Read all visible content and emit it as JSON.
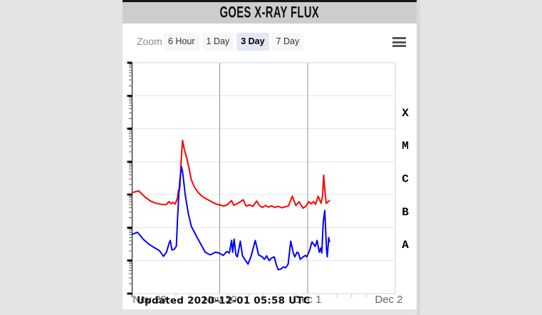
{
  "header": {
    "title": "GOES X-RAY FLUX"
  },
  "toolbar": {
    "zoom_label": "Zoom",
    "buttons": [
      {
        "label": "6 Hour",
        "selected": false
      },
      {
        "label": "1 Day",
        "selected": false
      },
      {
        "label": "3 Day",
        "selected": true
      },
      {
        "label": "7 Day",
        "selected": false
      }
    ]
  },
  "footer": {
    "updated": "Updated 2020-12-01 05:58 UTC"
  },
  "colors": {
    "page-bg": "#e4e4e4",
    "header-bg": "#cdcdcd",
    "button-bg": "#f7f7f7",
    "selected-button-bg": "#e2e9f5",
    "red-series": "#fe0000",
    "blue-series": "#0000fe",
    "day-gridline": "#919191",
    "decade-gridline": "#e6e6e6",
    "plot-border": "#ccd6eb",
    "axis-label": "#666666",
    "x-tick": "#c2cad8"
  },
  "chart_data": {
    "type": "line",
    "title": "GOES X-RAY FLUX",
    "x_axis": {
      "tick_labels": [
        "Nov 29",
        "Nov 30",
        "Dec 1",
        "Dec 2"
      ],
      "tick_hours": [
        0,
        24,
        48,
        72
      ],
      "day_gridline_hours": [
        24,
        48
      ],
      "minor_tick_interval_hours": 4,
      "range_hours": [
        0,
        72
      ],
      "grid": true
    },
    "y_axis": {
      "scale": "log",
      "min": 1e-09,
      "max": 0.01,
      "class_labels": [
        "X",
        "M",
        "C",
        "B",
        "A"
      ],
      "class_label_flux_centers": [
        0.000316,
        3.16e-05,
        3.16e-06,
        3.16e-07,
        3.16e-08
      ],
      "labels_position": "right",
      "grid": true
    },
    "legend": "none",
    "series": [
      {
        "name": "red",
        "color": "#fe0000",
        "points": [
          [
            0,
            1.15e-06
          ],
          [
            1.8,
            1.3e-06
          ],
          [
            3.5,
            8.5e-07
          ],
          [
            5,
            6.4e-07
          ],
          [
            6.5,
            5.5e-07
          ],
          [
            8,
            5.1e-07
          ],
          [
            9.3,
            5e-07
          ],
          [
            10.1,
            6.2e-07
          ],
          [
            10.6,
            5.3e-07
          ],
          [
            11.2,
            5.8e-07
          ],
          [
            11.8,
            5.2e-07
          ],
          [
            12.4,
            7.8e-07
          ],
          [
            12.7,
            1.4e-06
          ],
          [
            12.9,
            1.3e-06
          ],
          [
            13.1,
            1.9e-06
          ],
          [
            13.35,
            8e-06
          ],
          [
            13.8,
            4.4e-05
          ],
          [
            14.3,
            2.3e-05
          ],
          [
            14.9,
            1.35e-05
          ],
          [
            15.6,
            6.1e-06
          ],
          [
            16.2,
            2.8e-06
          ],
          [
            17.1,
            1.65e-06
          ],
          [
            18.1,
            1.16e-06
          ],
          [
            19.1,
            9e-07
          ],
          [
            20,
            7.8e-07
          ],
          [
            21.4,
            6.4e-07
          ],
          [
            23,
            5.2e-07
          ],
          [
            24,
            4.9e-07
          ],
          [
            25,
            4.5e-07
          ],
          [
            26,
            4.9e-07
          ],
          [
            27.2,
            6.6e-07
          ],
          [
            27.8,
            4.8e-07
          ],
          [
            28.6,
            5.2e-07
          ],
          [
            29.6,
            6.1e-07
          ],
          [
            30.4,
            7e-07
          ],
          [
            31.2,
            4.5e-07
          ],
          [
            32.2,
            4.9e-07
          ],
          [
            33,
            4.4e-07
          ],
          [
            34.1,
            6.4e-07
          ],
          [
            34.8,
            4.7e-07
          ],
          [
            35.6,
            4.1e-07
          ],
          [
            36.5,
            4.7e-07
          ],
          [
            37.3,
            4.2e-07
          ],
          [
            38.2,
            4.6e-07
          ],
          [
            39,
            4.1e-07
          ],
          [
            40,
            4.4e-07
          ],
          [
            41,
            4e-07
          ],
          [
            42,
            4.3e-07
          ],
          [
            42.8,
            4.6e-07
          ],
          [
            43.8,
            9e-07
          ],
          [
            44.8,
            4.7e-07
          ],
          [
            45.7,
            6.1e-07
          ],
          [
            46.7,
            3.9e-07
          ],
          [
            47.5,
            4.4e-07
          ],
          [
            48.3,
            6.1e-07
          ],
          [
            49,
            5.3e-07
          ],
          [
            49.6,
            6.2e-07
          ],
          [
            50.2,
            5.1e-07
          ],
          [
            50.9,
            9e-07
          ],
          [
            51.7,
            5.5e-07
          ],
          [
            52.1,
            9e-07
          ],
          [
            52.4,
            3.9e-06
          ],
          [
            52.75,
            1.3e-06
          ],
          [
            53.1,
            5.4e-07
          ],
          [
            53.5,
            6e-07
          ],
          [
            54,
            6.6e-07
          ]
        ]
      },
      {
        "name": "blue",
        "color": "#0000fe",
        "points": [
          [
            0,
            6.3e-08
          ],
          [
            1.5,
            7.2e-08
          ],
          [
            3,
            4.5e-08
          ],
          [
            4.5,
            3.2e-08
          ],
          [
            6,
            2.5e-08
          ],
          [
            7.5,
            2e-08
          ],
          [
            8.6,
            1.35e-08
          ],
          [
            9.4,
            1.8e-08
          ],
          [
            10.1,
            3.3e-08
          ],
          [
            10.45,
            4.1e-08
          ],
          [
            10.9,
            2.1e-08
          ],
          [
            11.5,
            2.2e-08
          ],
          [
            12.1,
            2.7e-08
          ],
          [
            12.4,
            1.56e-07
          ],
          [
            12.8,
            1.16e-06
          ],
          [
            13.1,
            3e-06
          ],
          [
            13.5,
            7e-06
          ],
          [
            13.8,
            5e-06
          ],
          [
            14.2,
            2.1e-06
          ],
          [
            14.5,
            1.05e-06
          ],
          [
            14.9,
            5.4e-07
          ],
          [
            15.4,
            2.6e-07
          ],
          [
            16.2,
            1.1e-07
          ],
          [
            17.5,
            5.8e-08
          ],
          [
            18.9,
            3e-08
          ],
          [
            20,
            1.8e-08
          ],
          [
            21.4,
            1.5e-08
          ],
          [
            22.8,
            1.8e-08
          ],
          [
            23.8,
            1.7e-08
          ],
          [
            24.9,
            1.44e-08
          ],
          [
            25.9,
            1.9e-08
          ],
          [
            26.6,
            1.7e-08
          ],
          [
            27.2,
            4.1e-08
          ],
          [
            27.5,
            1.8e-08
          ],
          [
            27.9,
            4.5e-08
          ],
          [
            28.4,
            1.5e-08
          ],
          [
            28.8,
            1.3e-08
          ],
          [
            29.6,
            3.9e-08
          ],
          [
            30.2,
            1.4e-08
          ],
          [
            30.8,
            1.1e-08
          ],
          [
            31.7,
            7.9e-09
          ],
          [
            32.5,
            1.3e-08
          ],
          [
            33.7,
            4.1e-08
          ],
          [
            34.6,
            1.5e-08
          ],
          [
            35.6,
            1.3e-08
          ],
          [
            36.2,
            1.1e-08
          ],
          [
            36.8,
            1.4e-08
          ],
          [
            37.5,
            1e-08
          ],
          [
            38.2,
            1.2e-08
          ],
          [
            38.9,
            1.3e-08
          ],
          [
            39.5,
            7.2e-09
          ],
          [
            40,
            5.3e-09
          ],
          [
            40.6,
            5.5e-09
          ],
          [
            41.4,
            6.4e-09
          ],
          [
            42,
            6.1e-09
          ],
          [
            42.7,
            7.9e-09
          ],
          [
            43.4,
            3.9e-08
          ],
          [
            44.1,
            1.7e-08
          ],
          [
            44.5,
            1.3e-08
          ],
          [
            45.1,
            1.8e-08
          ],
          [
            45.5,
            1.7e-08
          ],
          [
            46,
            1.1e-08
          ],
          [
            46.8,
            1.3e-08
          ],
          [
            47.4,
            1.44e-08
          ],
          [
            47.8,
            1.3e-08
          ],
          [
            48.6,
            2.1e-08
          ],
          [
            49.2,
            3.7e-08
          ],
          [
            50.1,
            2.7e-08
          ],
          [
            50.6,
            4.1e-08
          ],
          [
            51.2,
            1.8e-08
          ],
          [
            51.6,
            2.4e-08
          ],
          [
            51.9,
            1.7e-08
          ],
          [
            52.3,
            1.56e-07
          ],
          [
            52.7,
            3.3e-07
          ],
          [
            53.2,
            2.1e-08
          ],
          [
            53.4,
            1.3e-08
          ],
          [
            53.8,
            5e-08
          ],
          [
            54,
            3.8e-08
          ]
        ]
      }
    ]
  }
}
